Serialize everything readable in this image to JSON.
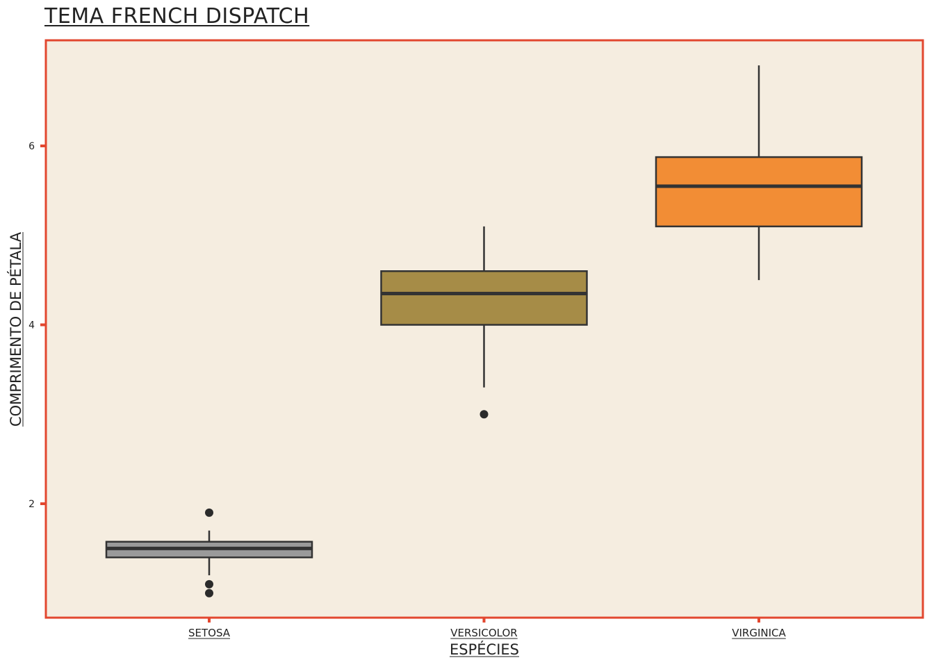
{
  "chart_data": {
    "type": "boxplot",
    "title": "TEMA FRENCH DISPATCH",
    "xlabel": "ESPÉCIES",
    "ylabel": "COMPRIMENTO DE PÉTALA",
    "ylim": [
      0.9,
      7.1
    ],
    "yticks": [
      "2",
      "4",
      "6"
    ],
    "grid": false,
    "colors": {
      "panel_background": "#f5ede0",
      "panel_border": "#e2472f",
      "box_outline": "#333333",
      "outlier": "#2b2b2b"
    },
    "categories": [
      "SETOSA",
      "VERSICOLOR",
      "VIRGINICA"
    ],
    "boxes": [
      {
        "name": "SETOSA",
        "color": "#9a9a9a",
        "whisker_low": 1.2,
        "q1": 1.4,
        "median": 1.5,
        "q3": 1.575,
        "whisker_high": 1.7,
        "outliers": [
          1.9,
          1.1,
          1.0
        ]
      },
      {
        "name": "VERSICOLOR",
        "color": "#a68c47",
        "whisker_low": 3.3,
        "q1": 4.0,
        "median": 4.35,
        "q3": 4.6,
        "whisker_high": 5.1,
        "outliers": [
          3.0
        ]
      },
      {
        "name": "VIRGINICA",
        "color": "#f28d35",
        "whisker_low": 4.5,
        "q1": 5.1,
        "median": 5.55,
        "q3": 5.875,
        "whisker_high": 6.9,
        "outliers": []
      }
    ]
  }
}
